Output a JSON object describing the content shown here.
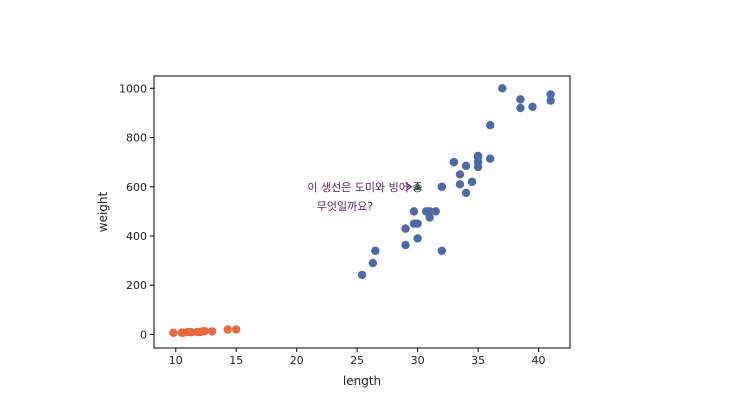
{
  "chart_data": {
    "type": "scatter",
    "xlabel": "length",
    "ylabel": "weight",
    "xlim": [
      8.2,
      42.6
    ],
    "ylim": [
      -55,
      1050
    ],
    "xticks": [
      10,
      15,
      20,
      25,
      30,
      35,
      40
    ],
    "yticks": [
      0,
      200,
      400,
      600,
      800,
      1000
    ],
    "grid": false,
    "series": [
      {
        "marker": "circle",
        "color": "#4c6aa6",
        "points": [
          [
            25.4,
            242
          ],
          [
            26.3,
            290
          ],
          [
            26.5,
            340
          ],
          [
            29.0,
            363
          ],
          [
            29.0,
            430
          ],
          [
            29.7,
            450
          ],
          [
            29.7,
            500
          ],
          [
            30.0,
            390
          ],
          [
            30.0,
            450
          ],
          [
            30.7,
            500
          ],
          [
            31.0,
            475
          ],
          [
            31.0,
            500
          ],
          [
            31.5,
            500
          ],
          [
            32.0,
            340
          ],
          [
            32.0,
            600
          ],
          [
            32.0,
            600
          ],
          [
            33.0,
            700
          ],
          [
            33.0,
            700
          ],
          [
            33.5,
            610
          ],
          [
            33.5,
            650
          ],
          [
            34.0,
            575
          ],
          [
            34.0,
            685
          ],
          [
            34.5,
            620
          ],
          [
            35.0,
            680
          ],
          [
            35.0,
            700
          ],
          [
            35.0,
            725
          ],
          [
            35.0,
            720
          ],
          [
            36.0,
            714
          ],
          [
            36.0,
            850
          ],
          [
            37.0,
            1000
          ],
          [
            38.5,
            920
          ],
          [
            38.5,
            955
          ],
          [
            39.5,
            925
          ],
          [
            41.0,
            975
          ],
          [
            41.0,
            950
          ]
        ]
      },
      {
        "marker": "circle",
        "color": "#e8683f",
        "points": [
          [
            9.8,
            6.7
          ],
          [
            10.5,
            7.5
          ],
          [
            10.6,
            7.0
          ],
          [
            11.0,
            9.7
          ],
          [
            11.2,
            9.8
          ],
          [
            11.3,
            8.7
          ],
          [
            11.8,
            10.0
          ],
          [
            11.8,
            9.9
          ],
          [
            12.0,
            9.8
          ],
          [
            12.2,
            12.2
          ],
          [
            12.4,
            13.4
          ],
          [
            13.0,
            12.2
          ],
          [
            14.3,
            19.7
          ],
          [
            15.0,
            19.9
          ]
        ]
      },
      {
        "marker": "triangle",
        "color": "#3a8a3a",
        "points": [
          [
            30,
            600
          ]
        ]
      }
    ],
    "annotations": [
      {
        "lines": [
          "이 생선은 도미와 빙어 중",
          "무엇일까요?"
        ],
        "arrow_to": [
          29.5,
          600
        ],
        "text_at": [
          22.5,
          600
        ]
      }
    ]
  }
}
